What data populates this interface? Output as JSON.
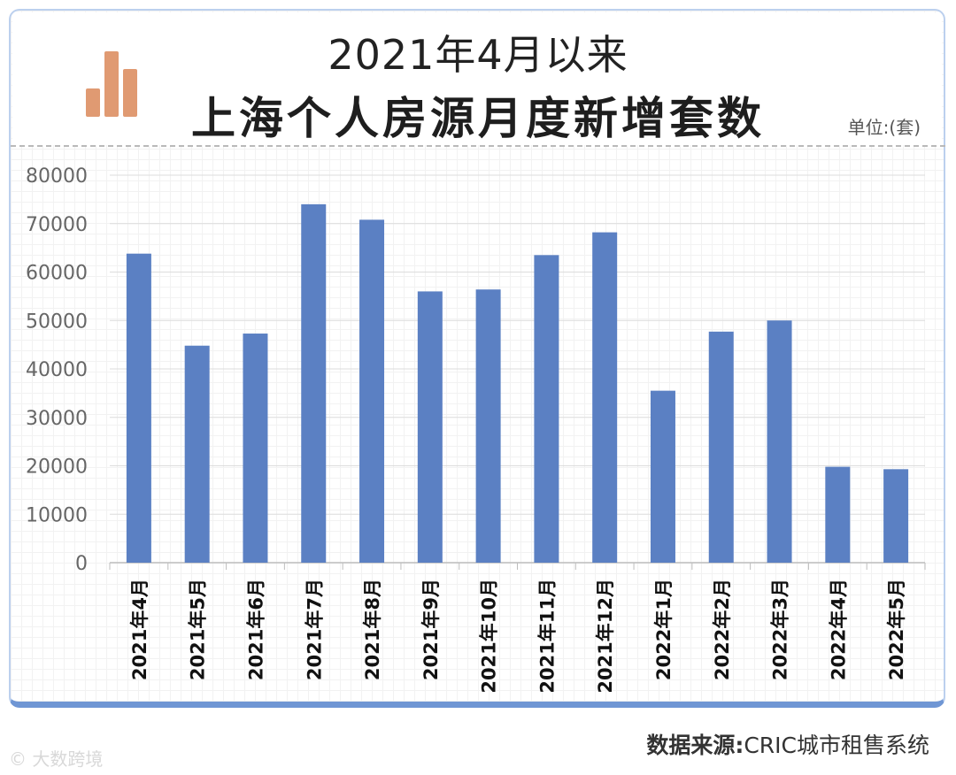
{
  "header": {
    "title_line1": "2021年4月以来",
    "title_line2": "上海个人房源月度新增套数",
    "unit": "单位:(套)"
  },
  "footer": {
    "source_label": "数据来源:",
    "source_value": "CRIC城市租售系统",
    "watermark": "大数跨境"
  },
  "colors": {
    "bar": "#5b80c3",
    "logo": "#e09a72",
    "border": "#6f96d4"
  },
  "chart_data": {
    "type": "bar",
    "categories": [
      "2021年4月",
      "2021年5月",
      "2021年6月",
      "2021年7月",
      "2021年8月",
      "2021年9月",
      "2021年10月",
      "2021年11月",
      "2021年12月",
      "2022年1月",
      "2022年2月",
      "2022年3月",
      "2022年4月",
      "2022年5月"
    ],
    "values": [
      63800,
      44800,
      47300,
      74000,
      70800,
      56000,
      56400,
      63500,
      68200,
      35500,
      47700,
      50000,
      19800,
      19300
    ],
    "ylim": [
      0,
      80000
    ],
    "yticks": [
      0,
      10000,
      20000,
      30000,
      40000,
      50000,
      60000,
      70000,
      80000
    ],
    "grid": true,
    "title": "上海个人房源月度新增套数"
  }
}
